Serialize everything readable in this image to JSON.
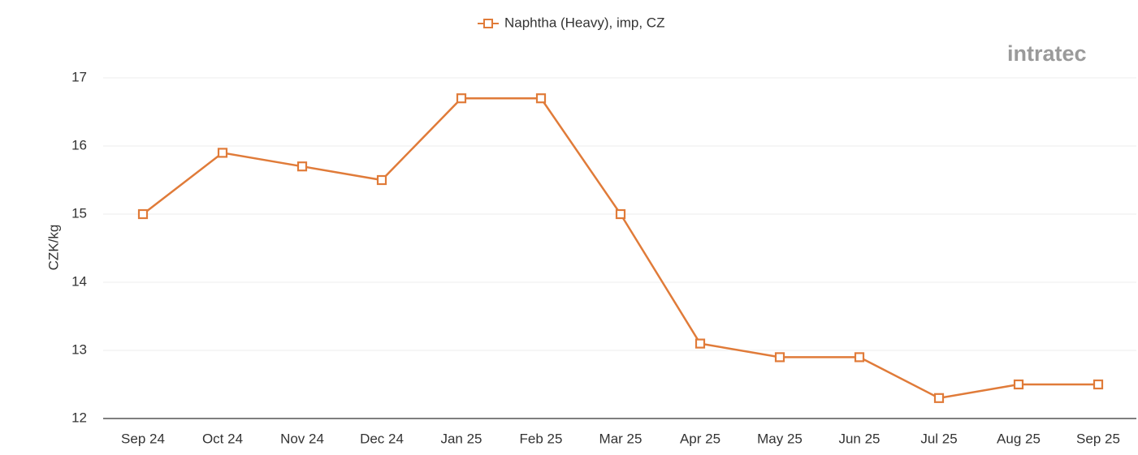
{
  "chart_data": {
    "type": "line",
    "ylabel": "CZK/kg",
    "logo": "intratec",
    "categories": [
      "Sep 24",
      "Oct 24",
      "Nov 24",
      "Dec 24",
      "Jan 25",
      "Feb 25",
      "Mar 25",
      "Apr 25",
      "May 25",
      "Jun 25",
      "Jul 25",
      "Aug 25",
      "Sep 25"
    ],
    "series": [
      {
        "name": "Naphtha (Heavy), imp, CZ",
        "color": "#e07b39",
        "values": [
          15.0,
          15.9,
          15.7,
          15.5,
          16.7,
          16.7,
          15.0,
          13.1,
          12.9,
          12.9,
          12.3,
          12.5,
          12.5
        ]
      }
    ],
    "ylim": [
      12,
      17
    ],
    "yticks": [
      12,
      13,
      14,
      15,
      16,
      17
    ],
    "grid": true,
    "legend": "top"
  }
}
